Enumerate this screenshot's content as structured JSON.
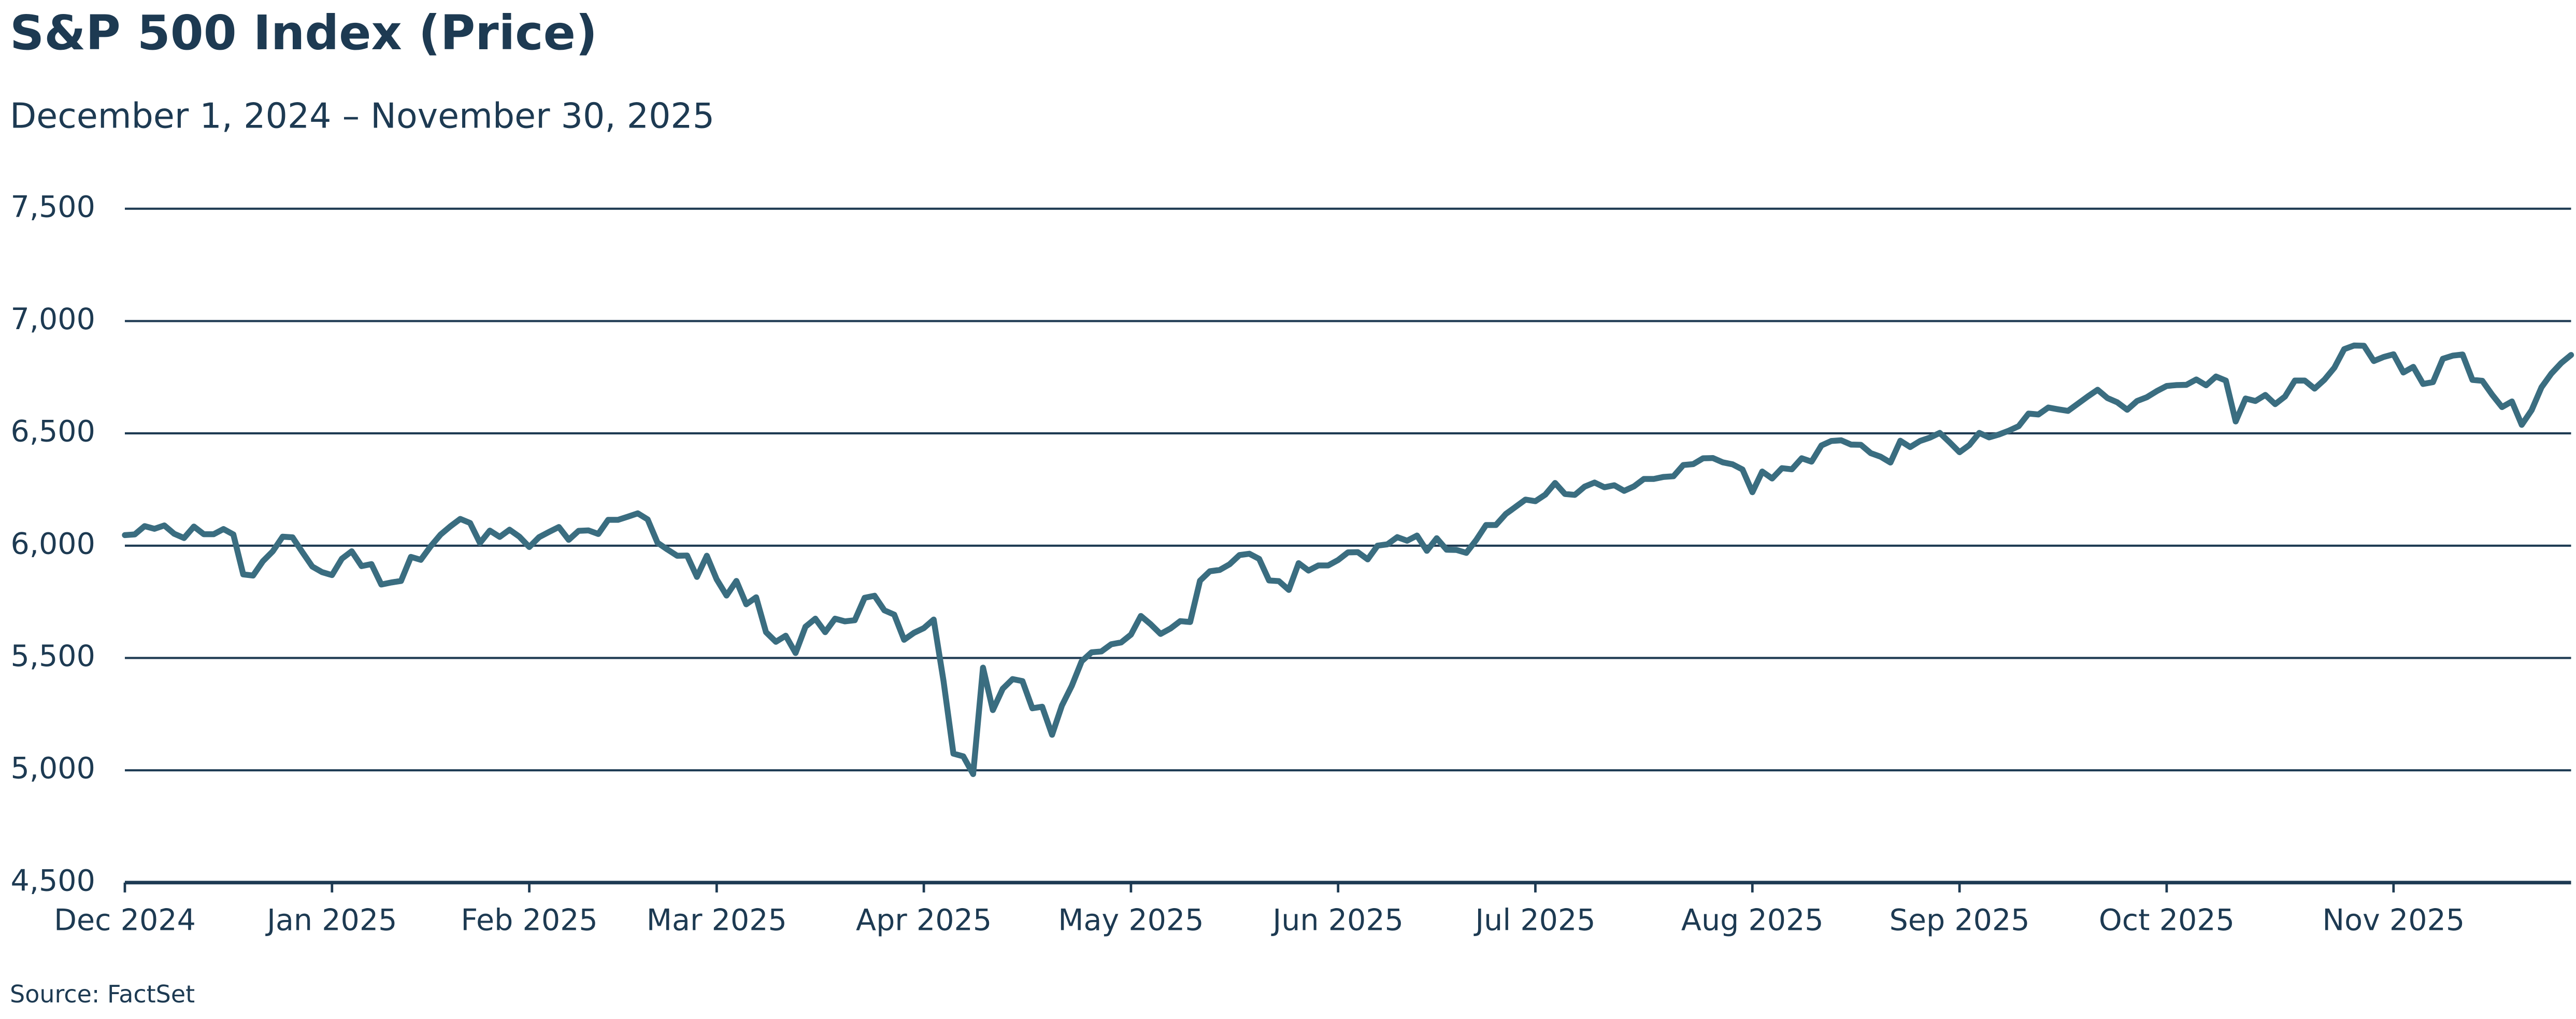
{
  "chart_data": {
    "type": "line",
    "title": "S&P 500 Index (Price)",
    "subtitle": "December 1, 2024 – November 30, 2025",
    "source": "Source: FactSet",
    "color": "#3a6d80",
    "grid": true,
    "ylim": [
      4500,
      7500
    ],
    "yticks": [
      {
        "value": 4500,
        "label": "4,500"
      },
      {
        "value": 5000,
        "label": "5,000"
      },
      {
        "value": 5500,
        "label": "5,500"
      },
      {
        "value": 6000,
        "label": "6,000"
      },
      {
        "value": 6500,
        "label": "6,500"
      },
      {
        "value": 7000,
        "label": "7,000"
      },
      {
        "value": 7500,
        "label": "7,500"
      }
    ],
    "categories": [
      "Dec 2024",
      null,
      null,
      null,
      null,
      null,
      null,
      null,
      null,
      null,
      null,
      null,
      null,
      null,
      null,
      null,
      null,
      null,
      null,
      null,
      null,
      "Jan 2025",
      null,
      null,
      null,
      null,
      null,
      null,
      null,
      null,
      null,
      null,
      null,
      null,
      null,
      null,
      null,
      null,
      null,
      null,
      null,
      "Feb 2025",
      null,
      null,
      null,
      null,
      null,
      null,
      null,
      null,
      null,
      null,
      null,
      null,
      null,
      null,
      null,
      null,
      null,
      null,
      "Mar 2025",
      null,
      null,
      null,
      null,
      null,
      null,
      null,
      null,
      null,
      null,
      null,
      null,
      null,
      null,
      null,
      null,
      null,
      null,
      null,
      null,
      "Apr 2025",
      null,
      null,
      null,
      null,
      null,
      null,
      null,
      null,
      null,
      null,
      null,
      null,
      null,
      null,
      null,
      null,
      null,
      null,
      null,
      null,
      "May 2025",
      null,
      null,
      null,
      null,
      null,
      null,
      null,
      null,
      null,
      null,
      null,
      null,
      null,
      null,
      null,
      null,
      null,
      null,
      null,
      null,
      "Jun 2025",
      null,
      null,
      null,
      null,
      null,
      null,
      null,
      null,
      null,
      null,
      null,
      null,
      null,
      null,
      null,
      null,
      null,
      null,
      null,
      "Jul 2025",
      null,
      null,
      null,
      null,
      null,
      null,
      null,
      null,
      null,
      null,
      null,
      null,
      null,
      null,
      null,
      null,
      null,
      null,
      null,
      null,
      null,
      "Aug 2025",
      null,
      null,
      null,
      null,
      null,
      null,
      null,
      null,
      null,
      null,
      null,
      null,
      null,
      null,
      null,
      null,
      null,
      null,
      null,
      null,
      "Sep 2025",
      null,
      null,
      null,
      null,
      null,
      null,
      null,
      null,
      null,
      null,
      null,
      null,
      null,
      null,
      null,
      null,
      null,
      null,
      null,
      null,
      "Oct 2025",
      null,
      null,
      null,
      null,
      null,
      null,
      null,
      null,
      null,
      null,
      null,
      null,
      null,
      null,
      null,
      null,
      null,
      null,
      null,
      null,
      null,
      null,
      "Nov 2025",
      null,
      null,
      null,
      null,
      null,
      null,
      null,
      null,
      null,
      null,
      null,
      null,
      null,
      null,
      null,
      null,
      null,
      null
    ],
    "values": [
      6047,
      6050,
      6087,
      6075,
      6090,
      6053,
      6034,
      6085,
      6051,
      6051,
      6074,
      6050,
      5872,
      5867,
      5931,
      5975,
      6040,
      6037,
      5971,
      5907,
      5882,
      5869,
      5942,
      5975,
      5909,
      5918,
      5827,
      5836,
      5843,
      5950,
      5937,
      5997,
      6049,
      6086,
      6119,
      6101,
      6012,
      6067,
      6039,
      6071,
      6040,
      5994,
      6038,
      6061,
      6083,
      6026,
      6066,
      6068,
      6052,
      6115,
      6115,
      6129,
      6144,
      6117,
      6013,
      5983,
      5955,
      5956,
      5861,
      5955,
      5850,
      5778,
      5843,
      5739,
      5770,
      5615,
      5572,
      5599,
      5522,
      5639,
      5675,
      5615,
      5675,
      5663,
      5668,
      5768,
      5777,
      5712,
      5693,
      5581,
      5612,
      5633,
      5671,
      5397,
      5074,
      5062,
      4983,
      5457,
      5268,
      5363,
      5406,
      5397,
      5276,
      5283,
      5158,
      5288,
      5376,
      5485,
      5525,
      5529,
      5561,
      5569,
      5604,
      5687,
      5650,
      5607,
      5631,
      5664,
      5660,
      5844,
      5886,
      5892,
      5917,
      5958,
      5964,
      5941,
      5845,
      5842,
      5803,
      5922,
      5889,
      5912,
      5912,
      5936,
      5970,
      5971,
      5939,
      6000,
      6006,
      6038,
      6022,
      6045,
      5977,
      6033,
      5982,
      5981,
      5968,
      6025,
      6092,
      6092,
      6141,
      6173,
      6205,
      6198,
      6227,
      6279,
      6230,
      6226,
      6263,
      6281,
      6260,
      6269,
      6244,
      6264,
      6297,
      6297,
      6306,
      6309,
      6359,
      6363,
      6389,
      6390,
      6371,
      6362,
      6339,
      6238,
      6330,
      6299,
      6345,
      6340,
      6389,
      6374,
      6446,
      6466,
      6469,
      6450,
      6449,
      6412,
      6396,
      6370,
      6467,
      6439,
      6466,
      6481,
      6502,
      6460,
      6416,
      6448,
      6502,
      6482,
      6495,
      6512,
      6532,
      6588,
      6584,
      6615,
      6607,
      6600,
      6632,
      6664,
      6694,
      6657,
      6638,
      6605,
      6644,
      6661,
      6688,
      6711,
      6715,
      6716,
      6740,
      6714,
      6753,
      6735,
      6553,
      6655,
      6644,
      6671,
      6630,
      6664,
      6735,
      6735,
      6699,
      6739,
      6792,
      6875,
      6891,
      6890,
      6822,
      6840,
      6852,
      6771,
      6796,
      6720,
      6728,
      6832,
      6846,
      6851,
      6738,
      6734,
      6672,
      6617,
      6642,
      6538,
      6603,
      6705,
      6766,
      6813,
      6849
    ]
  }
}
